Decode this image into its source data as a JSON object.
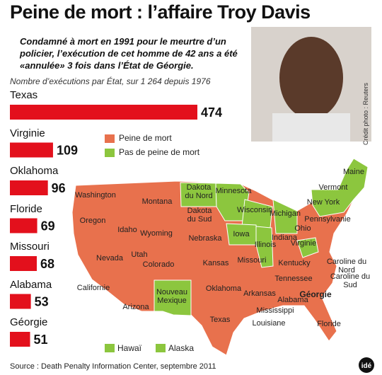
{
  "header": {
    "title": "Peine de mort : l’affaire Troy Davis",
    "intro": "Condamné à mort en 1991 pour le meurtre d’un policier, l’exécution de cet homme de 42 ans a été «annulée» 3 fois dans l’État de Géorgie."
  },
  "chart_data": {
    "type": "bar",
    "title": "Nombre d’exécutions par État, sur 1 264 depuis 1976",
    "categories": [
      "Texas",
      "Virginie",
      "Oklahoma",
      "Floride",
      "Missouri",
      "Alabama",
      "Géorgie"
    ],
    "values": [
      474,
      109,
      96,
      69,
      68,
      53,
      51
    ],
    "color": "#e3101c"
  },
  "map": {
    "legend": [
      {
        "name": "Peine de mort",
        "color": "#e8714d"
      },
      {
        "name": "Pas de peine de mort",
        "color": "#8cc63e"
      }
    ],
    "labels": [
      "Washington",
      "Montana",
      "Dakota du Nord",
      "Minnesota",
      "Oregon",
      "Idaho",
      "Wyoming",
      "Dakota du Sud",
      "Wisconsin",
      "Michigan",
      "Nevada",
      "Utah",
      "Nebraska",
      "Iowa",
      "Illinois",
      "Indiana",
      "Ohio",
      "Pennsylvanie",
      "New York",
      "Vermont",
      "Maine",
      "Colorado",
      "Kansas",
      "Missouri",
      "Kentucky",
      "Virginie",
      "Caroline du Nord",
      "Californie",
      "Tennessee",
      "Caroline du Sud",
      "Oklahoma",
      "Arkansas",
      "Arizona",
      "Nouveau Mexique",
      "Alabama",
      "Géorgie",
      "Mississippi",
      "Texas",
      "Louisiane",
      "Floride"
    ],
    "inset": [
      "Hawaï",
      "Alaska"
    ]
  },
  "photo_credit": "Crédit photo : Reuters",
  "source": "Source : Death Penalty Information Center, septembre 2011",
  "logo": "idé"
}
